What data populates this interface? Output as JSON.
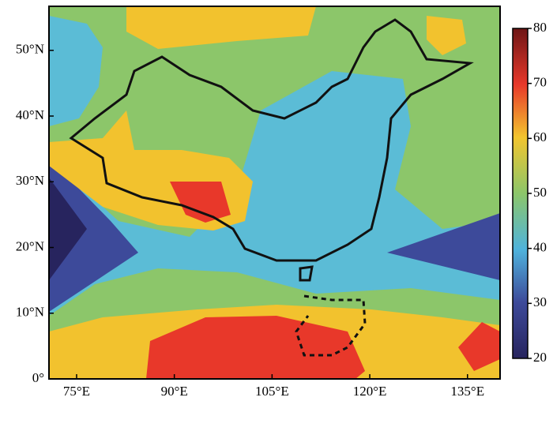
{
  "map": {
    "xlim": [
      70.76,
      140
    ],
    "ylim": [
      0,
      56.7
    ],
    "xticks": [
      {
        "value": 75,
        "label": "75°E"
      },
      {
        "value": 90,
        "label": "90°E"
      },
      {
        "value": 105,
        "label": "105°E"
      },
      {
        "value": 120,
        "label": "120°E"
      },
      {
        "value": 135,
        "label": "135°E"
      }
    ],
    "yticks": [
      {
        "value": 0,
        "label": "0°"
      },
      {
        "value": 10,
        "label": "10°N"
      },
      {
        "value": 20,
        "label": "20°N"
      },
      {
        "value": 30,
        "label": "30°N"
      },
      {
        "value": 40,
        "label": "40°N"
      },
      {
        "value": 50,
        "label": "50°N"
      }
    ]
  },
  "colorbar": {
    "lim": [
      20,
      80
    ],
    "ticks": [
      20,
      30,
      40,
      50,
      60,
      70,
      80
    ]
  }
}
